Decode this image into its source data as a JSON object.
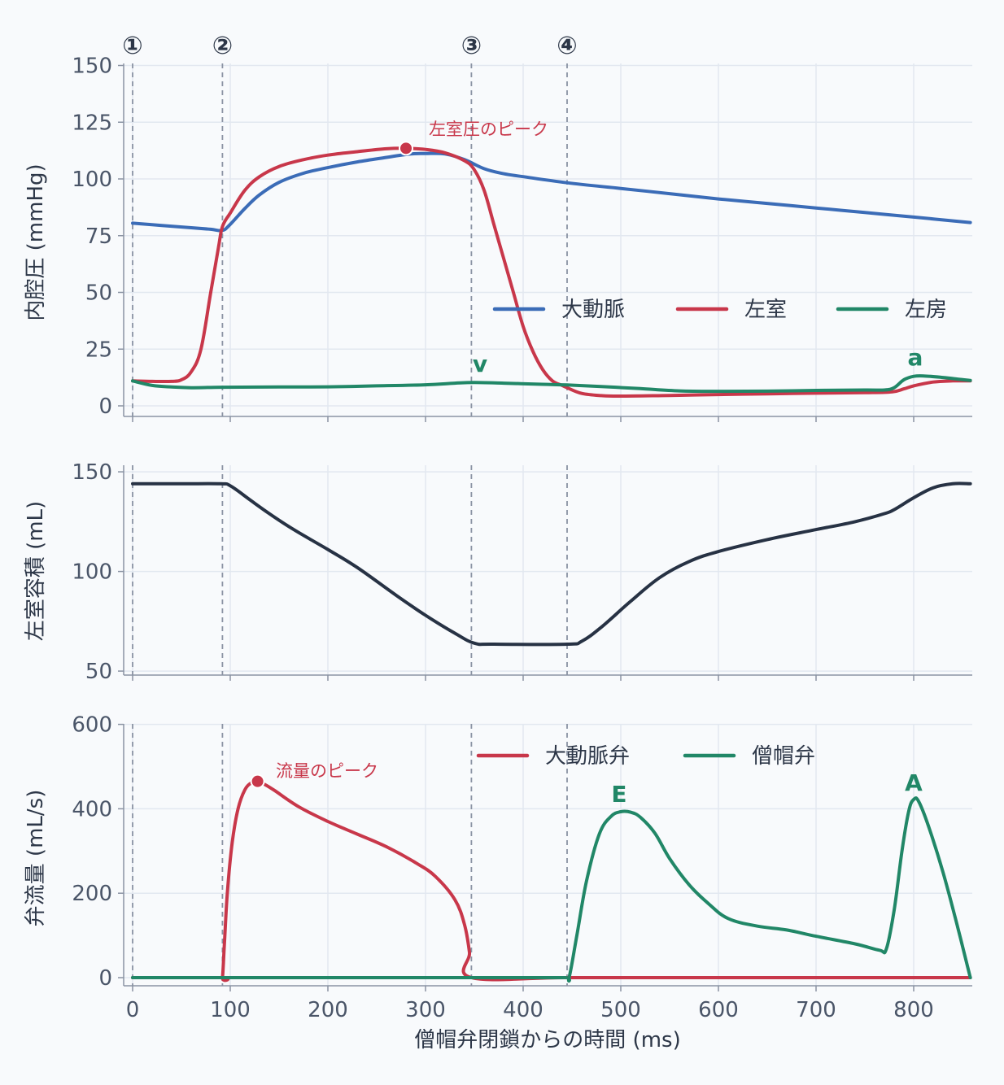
{
  "chart_data": {
    "type": "line",
    "xlabel": "僧帽弁閉鎖からの時間 (ms)",
    "xlim": [
      -5,
      860
    ],
    "xticks": [
      0,
      100,
      200,
      300,
      400,
      500,
      600,
      700,
      800
    ],
    "event_markers": [
      {
        "label": "①",
        "x": 0
      },
      {
        "label": "②",
        "x": 92
      },
      {
        "label": "③",
        "x": 347
      },
      {
        "label": "④",
        "x": 445
      }
    ],
    "panels": [
      {
        "id": "pressure",
        "ylabel": "内腔圧 (mmHg)",
        "ylim": [
          -5,
          150
        ],
        "yticks": [
          0,
          25,
          50,
          75,
          100,
          125,
          150
        ],
        "grid": true,
        "legend": "center-right",
        "series": [
          {
            "name": "大動脈",
            "color": "#3b6cb7",
            "points": [
              [
                0,
                80.5
              ],
              [
                30,
                79.5
              ],
              [
                60,
                78.5
              ],
              [
                80,
                77.8
              ],
              [
                92,
                77.3
              ],
              [
                100,
                80
              ],
              [
                115,
                87
              ],
              [
                130,
                93
              ],
              [
                150,
                98.5
              ],
              [
                175,
                102.5
              ],
              [
                200,
                105
              ],
              [
                230,
                107.5
              ],
              [
                260,
                109.5
              ],
              [
                285,
                111
              ],
              [
                300,
                111.2
              ],
              [
                320,
                111
              ],
              [
                340,
                108.5
              ],
              [
                360,
                104.5
              ],
              [
                380,
                102.3
              ],
              [
                400,
                101
              ],
              [
                445,
                98.3
              ],
              [
                500,
                95.8
              ],
              [
                550,
                93.5
              ],
              [
                600,
                91.2
              ],
              [
                650,
                89.2
              ],
              [
                700,
                87.2
              ],
              [
                750,
                85.2
              ],
              [
                800,
                83.2
              ],
              [
                858,
                80.8
              ]
            ]
          },
          {
            "name": "左室",
            "color": "#c8374a",
            "points": [
              [
                0,
                11
              ],
              [
                20,
                10.8
              ],
              [
                40,
                10.8
              ],
              [
                50,
                11.5
              ],
              [
                60,
                15
              ],
              [
                70,
                25
              ],
              [
                80,
                50
              ],
              [
                88,
                70
              ],
              [
                92,
                79
              ],
              [
                100,
                85
              ],
              [
                115,
                95
              ],
              [
                130,
                101
              ],
              [
                150,
                105.5
              ],
              [
                175,
                108.5
              ],
              [
                200,
                110.5
              ],
              [
                230,
                112
              ],
              [
                260,
                113.3
              ],
              [
                280,
                113.5
              ],
              [
                300,
                113
              ],
              [
                320,
                111.5
              ],
              [
                340,
                108
              ],
              [
                350,
                104
              ],
              [
                360,
                95
              ],
              [
                370,
                80
              ],
              [
                380,
                65
              ],
              [
                390,
                50
              ],
              [
                400,
                35
              ],
              [
                410,
                24
              ],
              [
                420,
                16
              ],
              [
                430,
                11
              ],
              [
                440,
                9
              ],
              [
                445,
                8
              ],
              [
                460,
                5.5
              ],
              [
                480,
                4.5
              ],
              [
                500,
                4.3
              ],
              [
                550,
                4.6
              ],
              [
                600,
                5
              ],
              [
                650,
                5.3
              ],
              [
                700,
                5.6
              ],
              [
                750,
                5.8
              ],
              [
                778,
                6.2
              ],
              [
                790,
                7.5
              ],
              [
                800,
                8.8
              ],
              [
                820,
                10.5
              ],
              [
                840,
                11
              ],
              [
                858,
                11
              ]
            ]
          },
          {
            "name": "左房",
            "color": "#218767",
            "points": [
              [
                0,
                11
              ],
              [
                20,
                9
              ],
              [
                40,
                8.3
              ],
              [
                60,
                8
              ],
              [
                92,
                8.2
              ],
              [
                150,
                8.3
              ],
              [
                200,
                8.4
              ],
              [
                250,
                8.8
              ],
              [
                300,
                9.3
              ],
              [
                330,
                10
              ],
              [
                350,
                10.3
              ],
              [
                380,
                10
              ],
              [
                420,
                9.5
              ],
              [
                445,
                9.2
              ],
              [
                480,
                8.5
              ],
              [
                520,
                7.6
              ],
              [
                560,
                6.6
              ],
              [
                600,
                6.4
              ],
              [
                650,
                6.5
              ],
              [
                700,
                6.8
              ],
              [
                750,
                7
              ],
              [
                770,
                7
              ],
              [
                780,
                8
              ],
              [
                790,
                11.5
              ],
              [
                800,
                13
              ],
              [
                810,
                13.2
              ],
              [
                830,
                12.5
              ],
              [
                845,
                11.8
              ],
              [
                858,
                11.2
              ]
            ]
          }
        ],
        "annotations": [
          {
            "text": "左室圧のピーク",
            "x": 280,
            "y": 113.5,
            "color": "#c8374a"
          },
          {
            "text": "v",
            "x": 357,
            "y": 10.3,
            "color": "#218767"
          },
          {
            "text": "a",
            "x": 801,
            "y": 13.2,
            "color": "#218767"
          }
        ]
      },
      {
        "id": "volume",
        "ylabel": "左室容積 (mL)",
        "ylim": [
          48,
          156
        ],
        "yticks": [
          50,
          100,
          150
        ],
        "grid": true,
        "series": [
          {
            "name": "左室容積",
            "color": "#273244",
            "points": [
              [
                0,
                144
              ],
              [
                50,
                144
              ],
              [
                90,
                144
              ],
              [
                100,
                143
              ],
              [
                120,
                136
              ],
              [
                140,
                129
              ],
              [
                165,
                121
              ],
              [
                200,
                111
              ],
              [
                230,
                102
              ],
              [
                270,
                88
              ],
              [
                300,
                78
              ],
              [
                330,
                69
              ],
              [
                350,
                64
              ],
              [
                370,
                63.5
              ],
              [
                445,
                63.5
              ],
              [
                460,
                65
              ],
              [
                480,
                72
              ],
              [
                510,
                85
              ],
              [
                540,
                97
              ],
              [
                570,
                105
              ],
              [
                600,
                110
              ],
              [
                650,
                116
              ],
              [
                700,
                121
              ],
              [
                740,
                125
              ],
              [
                770,
                129
              ],
              [
                780,
                131
              ],
              [
                800,
                137
              ],
              [
                820,
                142
              ],
              [
                840,
                144
              ],
              [
                858,
                144
              ]
            ]
          }
        ]
      },
      {
        "id": "flow",
        "ylabel": "弁流量 (mL/s)",
        "ylim": [
          -15,
          600
        ],
        "yticks": [
          0,
          200,
          400,
          600
        ],
        "grid": true,
        "legend": "top-center",
        "series": [
          {
            "name": "大動脈弁",
            "color": "#c8374a",
            "points": [
              [
                0,
                0
              ],
              [
                90,
                0
              ],
              [
                92,
                0
              ],
              [
                94,
                80
              ],
              [
                97,
                200
              ],
              [
                102,
                320
              ],
              [
                108,
                400
              ],
              [
                115,
                445
              ],
              [
                122,
                462
              ],
              [
                128,
                465
              ],
              [
                135,
                458
              ],
              [
                145,
                444
              ],
              [
                170,
                405
              ],
              [
                200,
                370
              ],
              [
                230,
                340
              ],
              [
                260,
                310
              ],
              [
                290,
                272
              ],
              [
                310,
                240
              ],
              [
                330,
                185
              ],
              [
                340,
                125
              ],
              [
                345,
                60
              ],
              [
                347,
                0
              ],
              [
                445,
                0
              ],
              [
                600,
                0
              ],
              [
                700,
                0
              ],
              [
                858,
                0
              ]
            ]
          },
          {
            "name": "僧帽弁",
            "color": "#218767",
            "points": [
              [
                0,
                0
              ],
              [
                100,
                0
              ],
              [
                200,
                0
              ],
              [
                300,
                0
              ],
              [
                400,
                0
              ],
              [
                443,
                0
              ],
              [
                447,
                0
              ],
              [
                455,
                100
              ],
              [
                465,
                230
              ],
              [
                478,
                340
              ],
              [
                490,
                382
              ],
              [
                500,
                393
              ],
              [
                510,
                392
              ],
              [
                520,
                380
              ],
              [
                535,
                342
              ],
              [
                550,
                282
              ],
              [
                570,
                220
              ],
              [
                590,
                175
              ],
              [
                610,
                140
              ],
              [
                640,
                122
              ],
              [
                670,
                113
              ],
              [
                700,
                98
              ],
              [
                740,
                80
              ],
              [
                765,
                65
              ],
              [
                772,
                68
              ],
              [
                780,
                160
              ],
              [
                788,
                300
              ],
              [
                795,
                395
              ],
              [
                800,
                422
              ],
              [
                805,
                418
              ],
              [
                815,
                360
              ],
              [
                830,
                250
              ],
              [
                845,
                120
              ],
              [
                858,
                0
              ]
            ]
          }
        ],
        "annotations": [
          {
            "text": "流量のピーク",
            "x": 128,
            "y": 465,
            "color": "#c8374a"
          },
          {
            "text": "E",
            "x": 500,
            "y": 393,
            "color": "#218767"
          },
          {
            "text": "A",
            "x": 800,
            "y": 422,
            "color": "#218767"
          }
        ]
      }
    ]
  }
}
